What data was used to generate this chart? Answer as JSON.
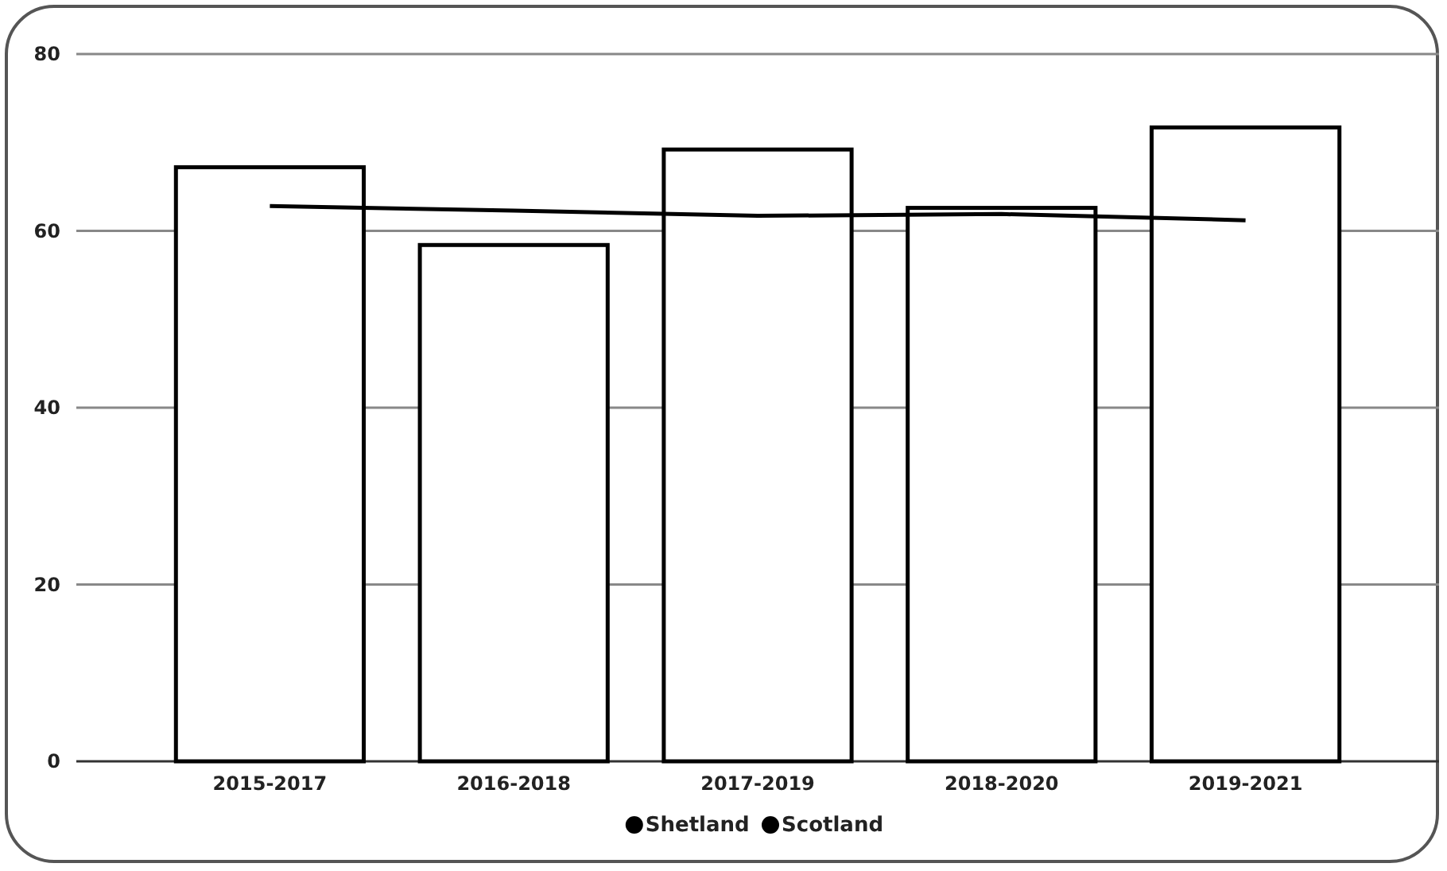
{
  "chart_data": {
    "type": "bar",
    "categories": [
      "2015-2017",
      "2016-2018",
      "2017-2019",
      "2018-2020",
      "2019-2021"
    ],
    "series": [
      {
        "name": "Shetland",
        "color": "#000000",
        "values": [
          67.2,
          58.4,
          69.2,
          62.6,
          71.7
        ]
      },
      {
        "name": "Scotland",
        "type": "line",
        "color": "#000000",
        "values": [
          62.8,
          62.3,
          61.7,
          61.9,
          61.2
        ]
      }
    ],
    "ylim": [
      0,
      80
    ],
    "yticks": [
      0,
      20,
      40,
      60,
      80
    ],
    "grid": "y",
    "legend": "bottom",
    "marker": "none"
  }
}
